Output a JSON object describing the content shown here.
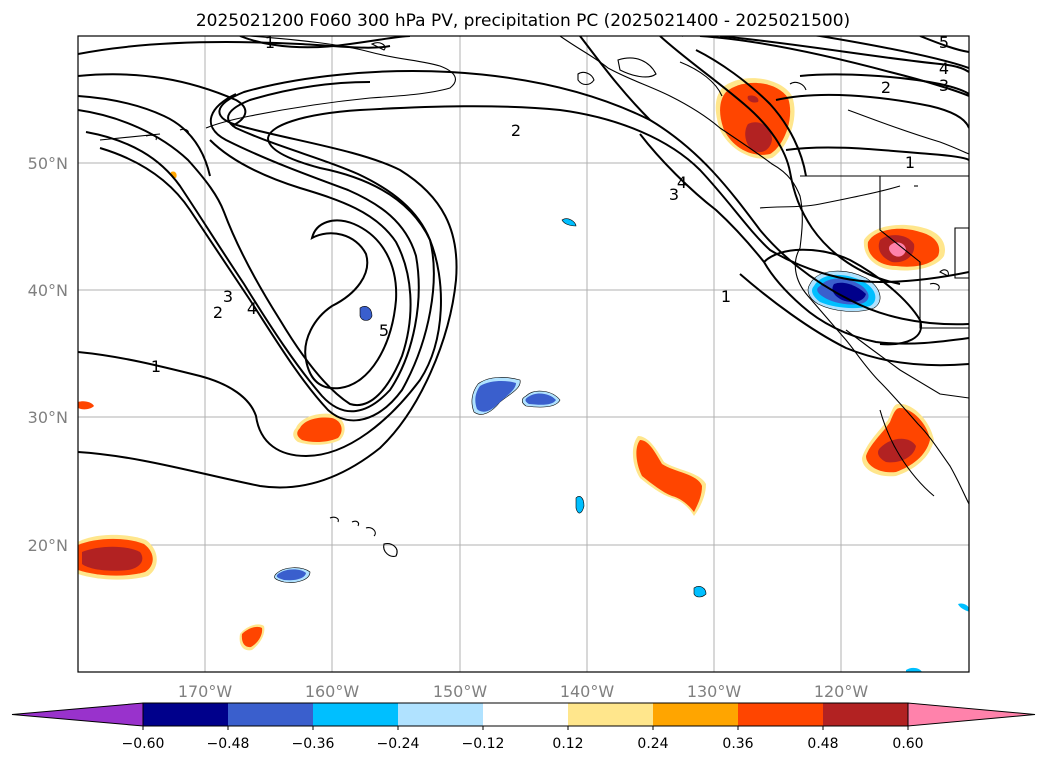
{
  "title": "2025021200 F060 300 hPa PV, precipitation PC (2025021400 - 2025021500)",
  "map": {
    "projection": "PlateCarree",
    "lon_range": [
      -180,
      -110
    ],
    "lat_range": [
      10,
      60
    ],
    "gridlines": true,
    "coastlines": true,
    "lat_ticks": [
      "50°N",
      "40°N",
      "30°N",
      "20°N"
    ],
    "lon_ticks": [
      "170°W",
      "160°W",
      "150°W",
      "140°W",
      "130°W",
      "120°W"
    ],
    "contour_labels": [
      "1",
      "5",
      "4",
      "3",
      "2",
      "2",
      "4",
      "3",
      "1",
      "1",
      "3",
      "2",
      "4",
      "5",
      "1"
    ],
    "overlay": {
      "name": "300 hPa PV",
      "type": "contour",
      "levels": [
        1,
        2,
        3,
        4,
        5
      ],
      "color": "#000000"
    },
    "shading": {
      "name": "precipitation PC"
    }
  },
  "colorbar": {
    "ticks": [
      "−0.60",
      "−0.48",
      "−0.36",
      "−0.24",
      "−0.12",
      "0.12",
      "0.24",
      "0.36",
      "0.48",
      "0.60"
    ],
    "bounds": [
      -0.6,
      -0.48,
      -0.36,
      -0.24,
      -0.12,
      0.12,
      0.24,
      0.36,
      0.48,
      0.6
    ],
    "colors": [
      "#9932cc",
      "#00008b",
      "#3a5fcd",
      "#00bfff",
      "#b0e2ff",
      "#ffffff",
      "#ffe68c",
      "#ffa500",
      "#ff4500",
      "#b22222",
      "#ff82ab"
    ],
    "extend": "both"
  }
}
